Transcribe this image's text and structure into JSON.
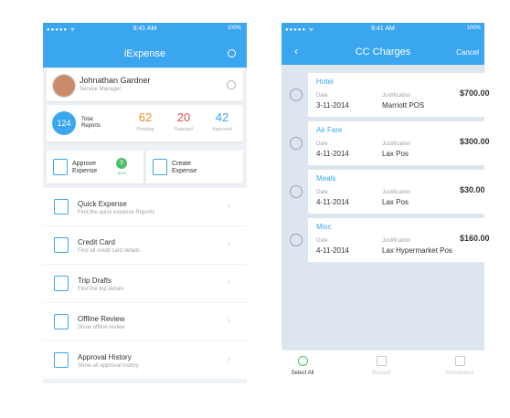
{
  "left_screen": {
    "status": {
      "time": "9:41 AM",
      "battery": "100%"
    },
    "header": {
      "title": "iExpense"
    },
    "profile": {
      "name": "Johnathan Gardner",
      "role": "Service Manager"
    },
    "stats": {
      "total": "124",
      "total_label": "Total Reports",
      "items": [
        {
          "value": "62",
          "label": "Pending"
        },
        {
          "value": "20",
          "label": "Rejected"
        },
        {
          "value": "42",
          "label": "Approved"
        }
      ]
    },
    "actions": [
      {
        "label": "Approve Expense",
        "badge": "3",
        "badge_label": "NEW"
      },
      {
        "label": "Create Expense"
      }
    ],
    "menu": [
      {
        "title": "Quick Expense",
        "subtitle": "Find the quick expense Reports"
      },
      {
        "title": "Credit Card",
        "subtitle": "Find all credit card details"
      },
      {
        "title": "Trip Drafts",
        "subtitle": "Find the trip details"
      },
      {
        "title": "Offline Review",
        "subtitle": "Show offline review"
      },
      {
        "title": "Approval History",
        "subtitle": "Show all approval history"
      }
    ]
  },
  "right_screen": {
    "status": {
      "time": "9:41 AM",
      "battery": "100%"
    },
    "header": {
      "title": "CC Charges",
      "cancel": "Cancel"
    },
    "labels": {
      "date": "Date",
      "justification": "Justification"
    },
    "charges": [
      {
        "category": "Hotel",
        "date": "3-11-2014",
        "justification": "Marriott POS",
        "amount": "$700.00"
      },
      {
        "category": "Air Fare",
        "date": "4-11-2014",
        "justification": "Lax Pos",
        "amount": "$300.00"
      },
      {
        "category": "Meals",
        "date": "4-11-2014",
        "justification": "Lax Pos",
        "amount": "$30.00"
      },
      {
        "category": "Misc",
        "date": "4-11-2014",
        "justification": "Lax Hypermarket Pos",
        "amount": "$160.00"
      }
    ],
    "tabs": [
      "Select All",
      "Discard",
      "Personalize"
    ]
  }
}
